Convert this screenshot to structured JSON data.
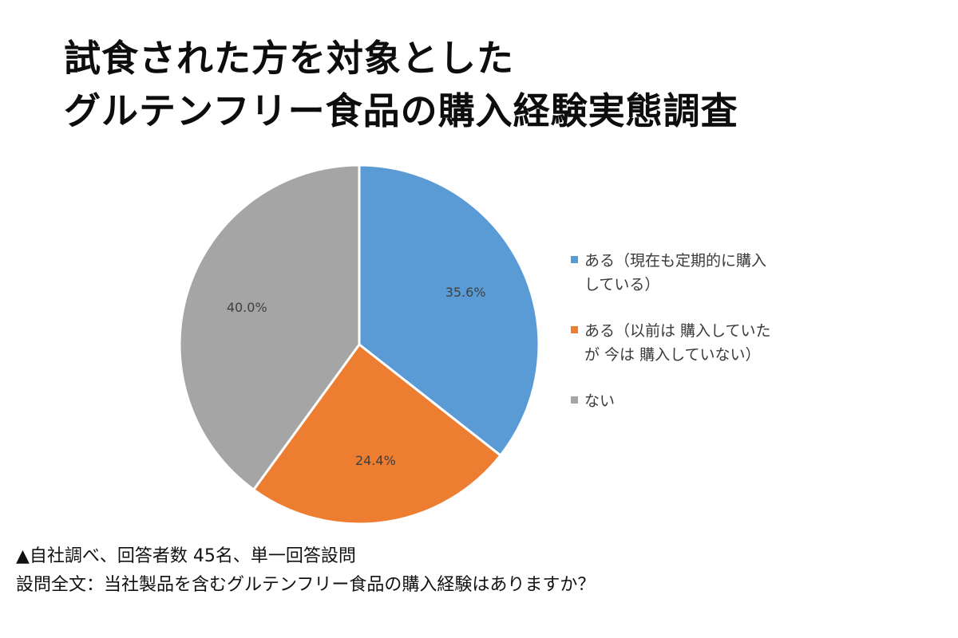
{
  "title_lines": [
    "試食された方を対象とした",
    "グルテンフリー食品の購入経験実態調査"
  ],
  "chart_data": {
    "type": "pie",
    "title": "",
    "start_angle_deg": 0,
    "direction": "clockwise",
    "legend_position": "right",
    "slices": [
      {
        "name": "ある（現在も定期的に購入\nしている）",
        "value": 35.6,
        "label": "35.6%",
        "color": "#5B9BD5"
      },
      {
        "name": "ある（以前は 購入していた\nが 今は 購入していない）",
        "value": 24.4,
        "label": "24.4%",
        "color": "#ED7D31"
      },
      {
        "name": "ない",
        "value": 40.0,
        "label": "40.0%",
        "color": "#A5A5A5"
      }
    ]
  },
  "footnotes": [
    "▲自社調べ、回答者数 45名、単一回答設問",
    "設問全文：当社製品を含むグルテンフリー食品の購入経験はありますか？"
  ]
}
